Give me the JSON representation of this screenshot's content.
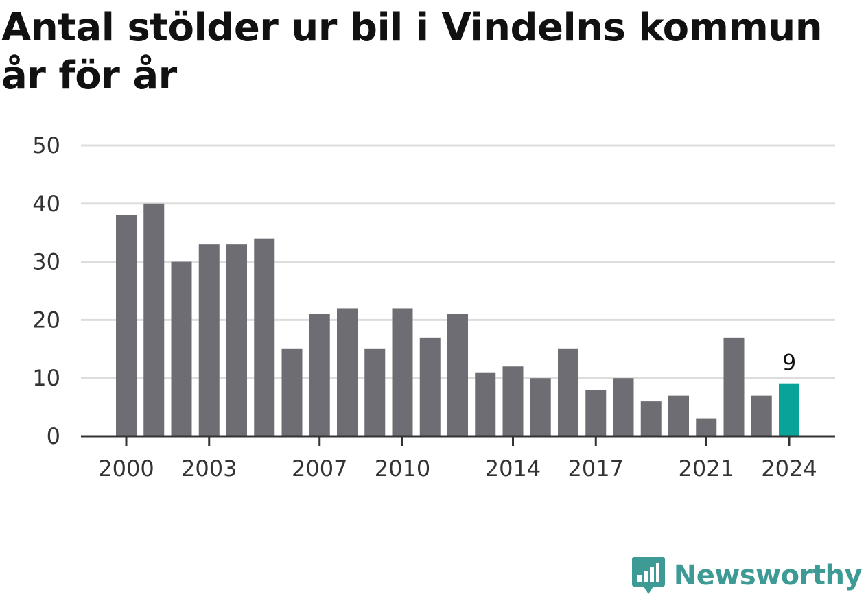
{
  "header": {
    "title": "Antal stölder ur bil i Vindelns kommun år för år"
  },
  "brand": {
    "name": "Newsworthy",
    "icon": "newsworthy-logo-icon",
    "color": "#3d9a95"
  },
  "colors": {
    "bar": "#6e6d73",
    "highlight": "#0aa39a",
    "grid": "#dddddd",
    "axis": "#333333"
  },
  "chart_data": {
    "type": "bar",
    "title": "Antal stölder ur bil i Vindelns kommun år för år",
    "xlabel": "",
    "ylabel": "",
    "ylim": [
      0,
      50
    ],
    "yticks": [
      0,
      10,
      20,
      30,
      40,
      50
    ],
    "xticks": [
      "2000",
      "2003",
      "2007",
      "2010",
      "2014",
      "2017",
      "2021",
      "2024"
    ],
    "grid": true,
    "categories": [
      "2000",
      "2001",
      "2002",
      "2003",
      "2004",
      "2005",
      "2006",
      "2007",
      "2008",
      "2009",
      "2010",
      "2011",
      "2012",
      "2013",
      "2014",
      "2015",
      "2016",
      "2017",
      "2018",
      "2019",
      "2020",
      "2021",
      "2022",
      "2023",
      "2024"
    ],
    "values": [
      38,
      40,
      30,
      33,
      33,
      34,
      15,
      21,
      22,
      15,
      22,
      17,
      21,
      11,
      12,
      10,
      15,
      8,
      10,
      6,
      7,
      3,
      17,
      7,
      9
    ],
    "highlight": {
      "category": "2024",
      "label": "9"
    }
  }
}
